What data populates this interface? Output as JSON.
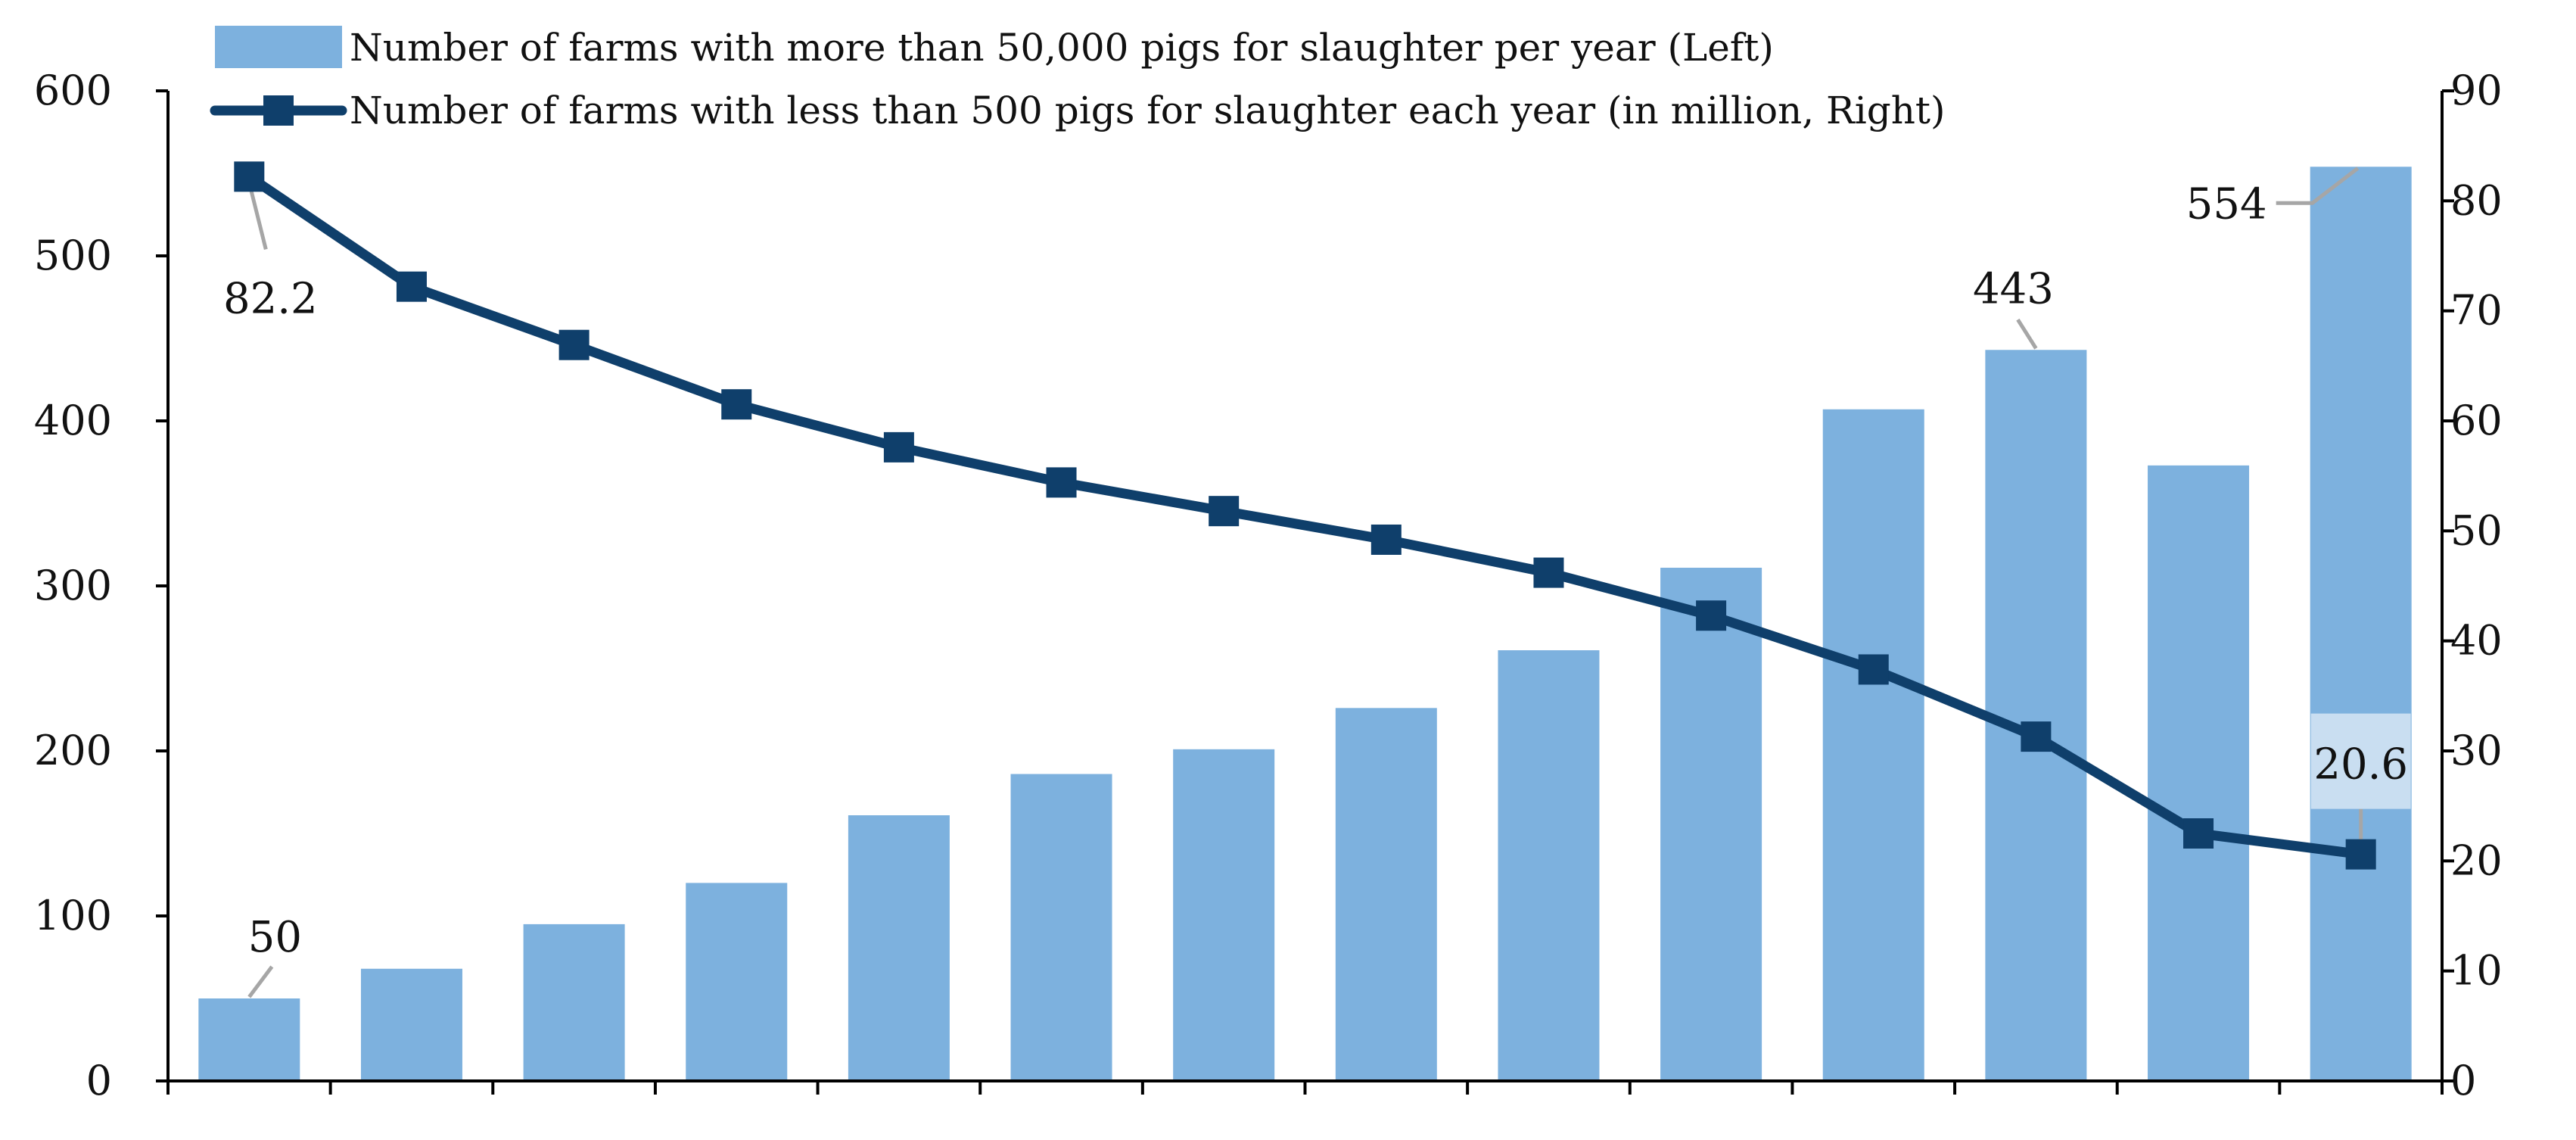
{
  "chart_data": {
    "type": "bar+line",
    "title": "",
    "xlabel": "",
    "ylabel_left": "",
    "ylabel_right": "",
    "categories": [
      "",
      "",
      "",
      "",
      "",
      "",
      "",
      "",
      "",
      "",
      "",
      "",
      "",
      ""
    ],
    "y_left_lim": [
      0,
      600
    ],
    "y_left_ticks": [
      "0",
      "100",
      "200",
      "300",
      "400",
      "500",
      "600"
    ],
    "y_right_lim": [
      0,
      90
    ],
    "y_right_ticks": [
      "0",
      "10",
      "20",
      "30",
      "40",
      "50",
      "60",
      "70",
      "80",
      "90"
    ],
    "grid": false,
    "legend_position": "top",
    "series": [
      {
        "name": "Number of farms with more than 50,000 pigs for slaughter per year (Left)",
        "type": "bar",
        "axis": "left",
        "color": "#7db1de",
        "values": [
          50,
          68,
          95,
          120,
          161,
          186,
          201,
          226,
          261,
          311,
          407,
          443,
          373,
          554
        ]
      },
      {
        "name": "Number of farms with less than 500 pigs for slaughter each year (in million, Right)",
        "type": "line",
        "axis": "right",
        "color": "#0f3f6b",
        "values": [
          82.2,
          72.2,
          66.9,
          61.5,
          57.6,
          54.4,
          51.8,
          49.2,
          46.2,
          42.3,
          37.4,
          31.3,
          22.5,
          20.6
        ]
      }
    ],
    "annotations": [
      {
        "series": 0,
        "index": 0,
        "text": "50"
      },
      {
        "series": 0,
        "index": 11,
        "text": "443"
      },
      {
        "series": 0,
        "index": 13,
        "text": "554"
      },
      {
        "series": 1,
        "index": 0,
        "text": "82.2"
      },
      {
        "series": 1,
        "index": 13,
        "text": "20.6"
      }
    ],
    "colors": {
      "axis": "#000000",
      "leader": "#a6a6a6",
      "label_box": "#c9def1"
    }
  }
}
